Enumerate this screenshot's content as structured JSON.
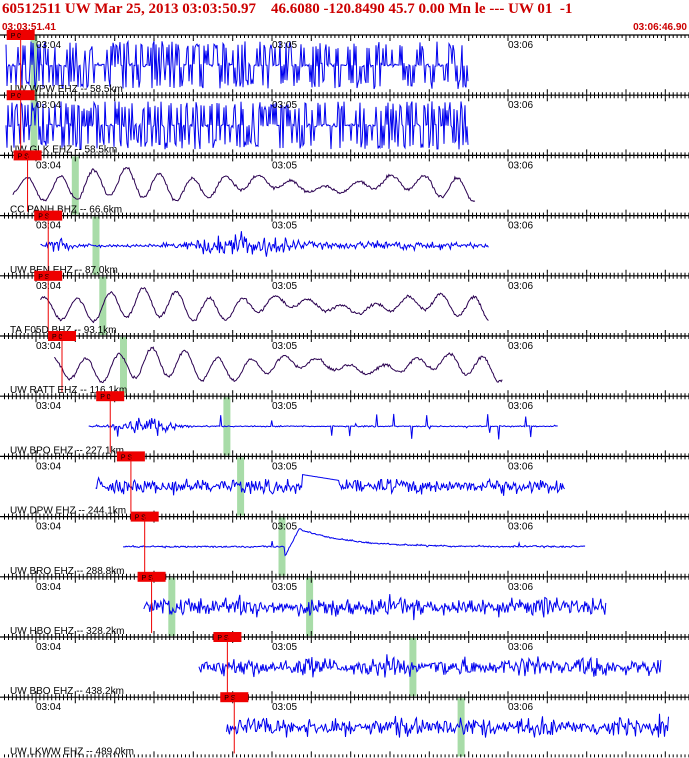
{
  "header": {
    "title": "60512511 UW Mar 25, 2013 03:03:50.97    46.6080 -120.8490 45.7 0.00 Mn le --- UW 01  -1",
    "start_time": "03:03:51.41",
    "end_time": "03:06:46.90"
  },
  "colors": {
    "header_text": "#cc0000",
    "waveform_blue": "#0000ee",
    "waveform_purple": "#2a0050",
    "pick_marker": "#ee0000",
    "phase_window": "#a8dca8",
    "axis": "#000000"
  },
  "chart_data": {
    "type": "seismogram",
    "x_unit": "time (UTC)",
    "x_range": [
      "03:03:51.41",
      "03:06:46.90"
    ],
    "tick_labels": [
      "03:04",
      "03:05",
      "03:06"
    ],
    "traces": [
      {
        "label": "UW WPW EHZ -- 58.5km",
        "color": "blue",
        "style": "clipped",
        "pick": "P 0",
        "segment_start": 0.0,
        "segment_end": 0.68,
        "pick_time": 0.03,
        "windows": [
          0.05
        ]
      },
      {
        "label": "UW GLK EHZ -- 58.5km",
        "color": "blue",
        "style": "clipped",
        "pick": "P 0",
        "segment_start": 0.0,
        "segment_end": 0.68,
        "pick_time": 0.03,
        "windows": [
          0.05
        ]
      },
      {
        "label": "CC PANH BHZ -- 66.6km",
        "color": "purple",
        "style": "longperiod",
        "pick": "P S",
        "segment_start": 0.01,
        "segment_end": 0.69,
        "pick_time": 0.04,
        "windows": [
          0.11
        ]
      },
      {
        "label": "UW BEN EHZ -- 87.0km",
        "color": "blue",
        "style": "burst",
        "pick": "P S",
        "segment_start": 0.05,
        "segment_end": 0.71,
        "pick_time": 0.07,
        "windows": [
          0.14
        ]
      },
      {
        "label": "TA F05D BHZ -- 93.1km",
        "color": "purple",
        "style": "longperiod",
        "pick": "P S",
        "segment_start": 0.05,
        "segment_end": 0.71,
        "pick_time": 0.07,
        "windows": [
          0.15
        ]
      },
      {
        "label": "UW RATT EHZ -- 116.1km",
        "color": "purple",
        "style": "longperiod",
        "pick": "P 0",
        "segment_start": 0.07,
        "segment_end": 0.73,
        "pick_time": 0.09,
        "windows": [
          0.18
        ]
      },
      {
        "label": "UW BPO EHZ -- 227.1km",
        "color": "blue",
        "style": "spiky",
        "pick": "P 0",
        "segment_start": 0.12,
        "segment_end": 0.81,
        "pick_time": 0.16,
        "windows": [
          0.33
        ]
      },
      {
        "label": "UW DPW EHZ -- 244.1km",
        "color": "blue",
        "style": "noisy_step",
        "pick": "P S",
        "segment_start": 0.13,
        "segment_end": 0.82,
        "pick_time": 0.19,
        "windows": [
          0.35
        ]
      },
      {
        "label": "UW BRO EHZ -- 288.8km",
        "color": "blue",
        "style": "step",
        "pick": "P S",
        "segment_start": 0.17,
        "segment_end": 0.85,
        "pick_time": 0.21,
        "windows": [
          0.41
        ]
      },
      {
        "label": "UW HBO EHZ -- 328.2km",
        "color": "blue",
        "style": "noisy",
        "pick": "P S",
        "segment_start": 0.2,
        "segment_end": 0.88,
        "pick_time": 0.22,
        "windows": [
          0.25,
          0.45
        ]
      },
      {
        "label": "UW BBO EHZ -- 438.2km",
        "color": "blue",
        "style": "noisy",
        "pick": "P S",
        "segment_start": 0.28,
        "segment_end": 0.96,
        "pick_time": 0.33,
        "windows": [
          0.6
        ]
      },
      {
        "label": "UW LKWW EHZ -- 489.0km",
        "color": "blue",
        "style": "noisy",
        "pick": "P S",
        "segment_start": 0.32,
        "segment_end": 1.0,
        "pick_time": 0.34,
        "windows": [
          0.67
        ]
      }
    ]
  }
}
